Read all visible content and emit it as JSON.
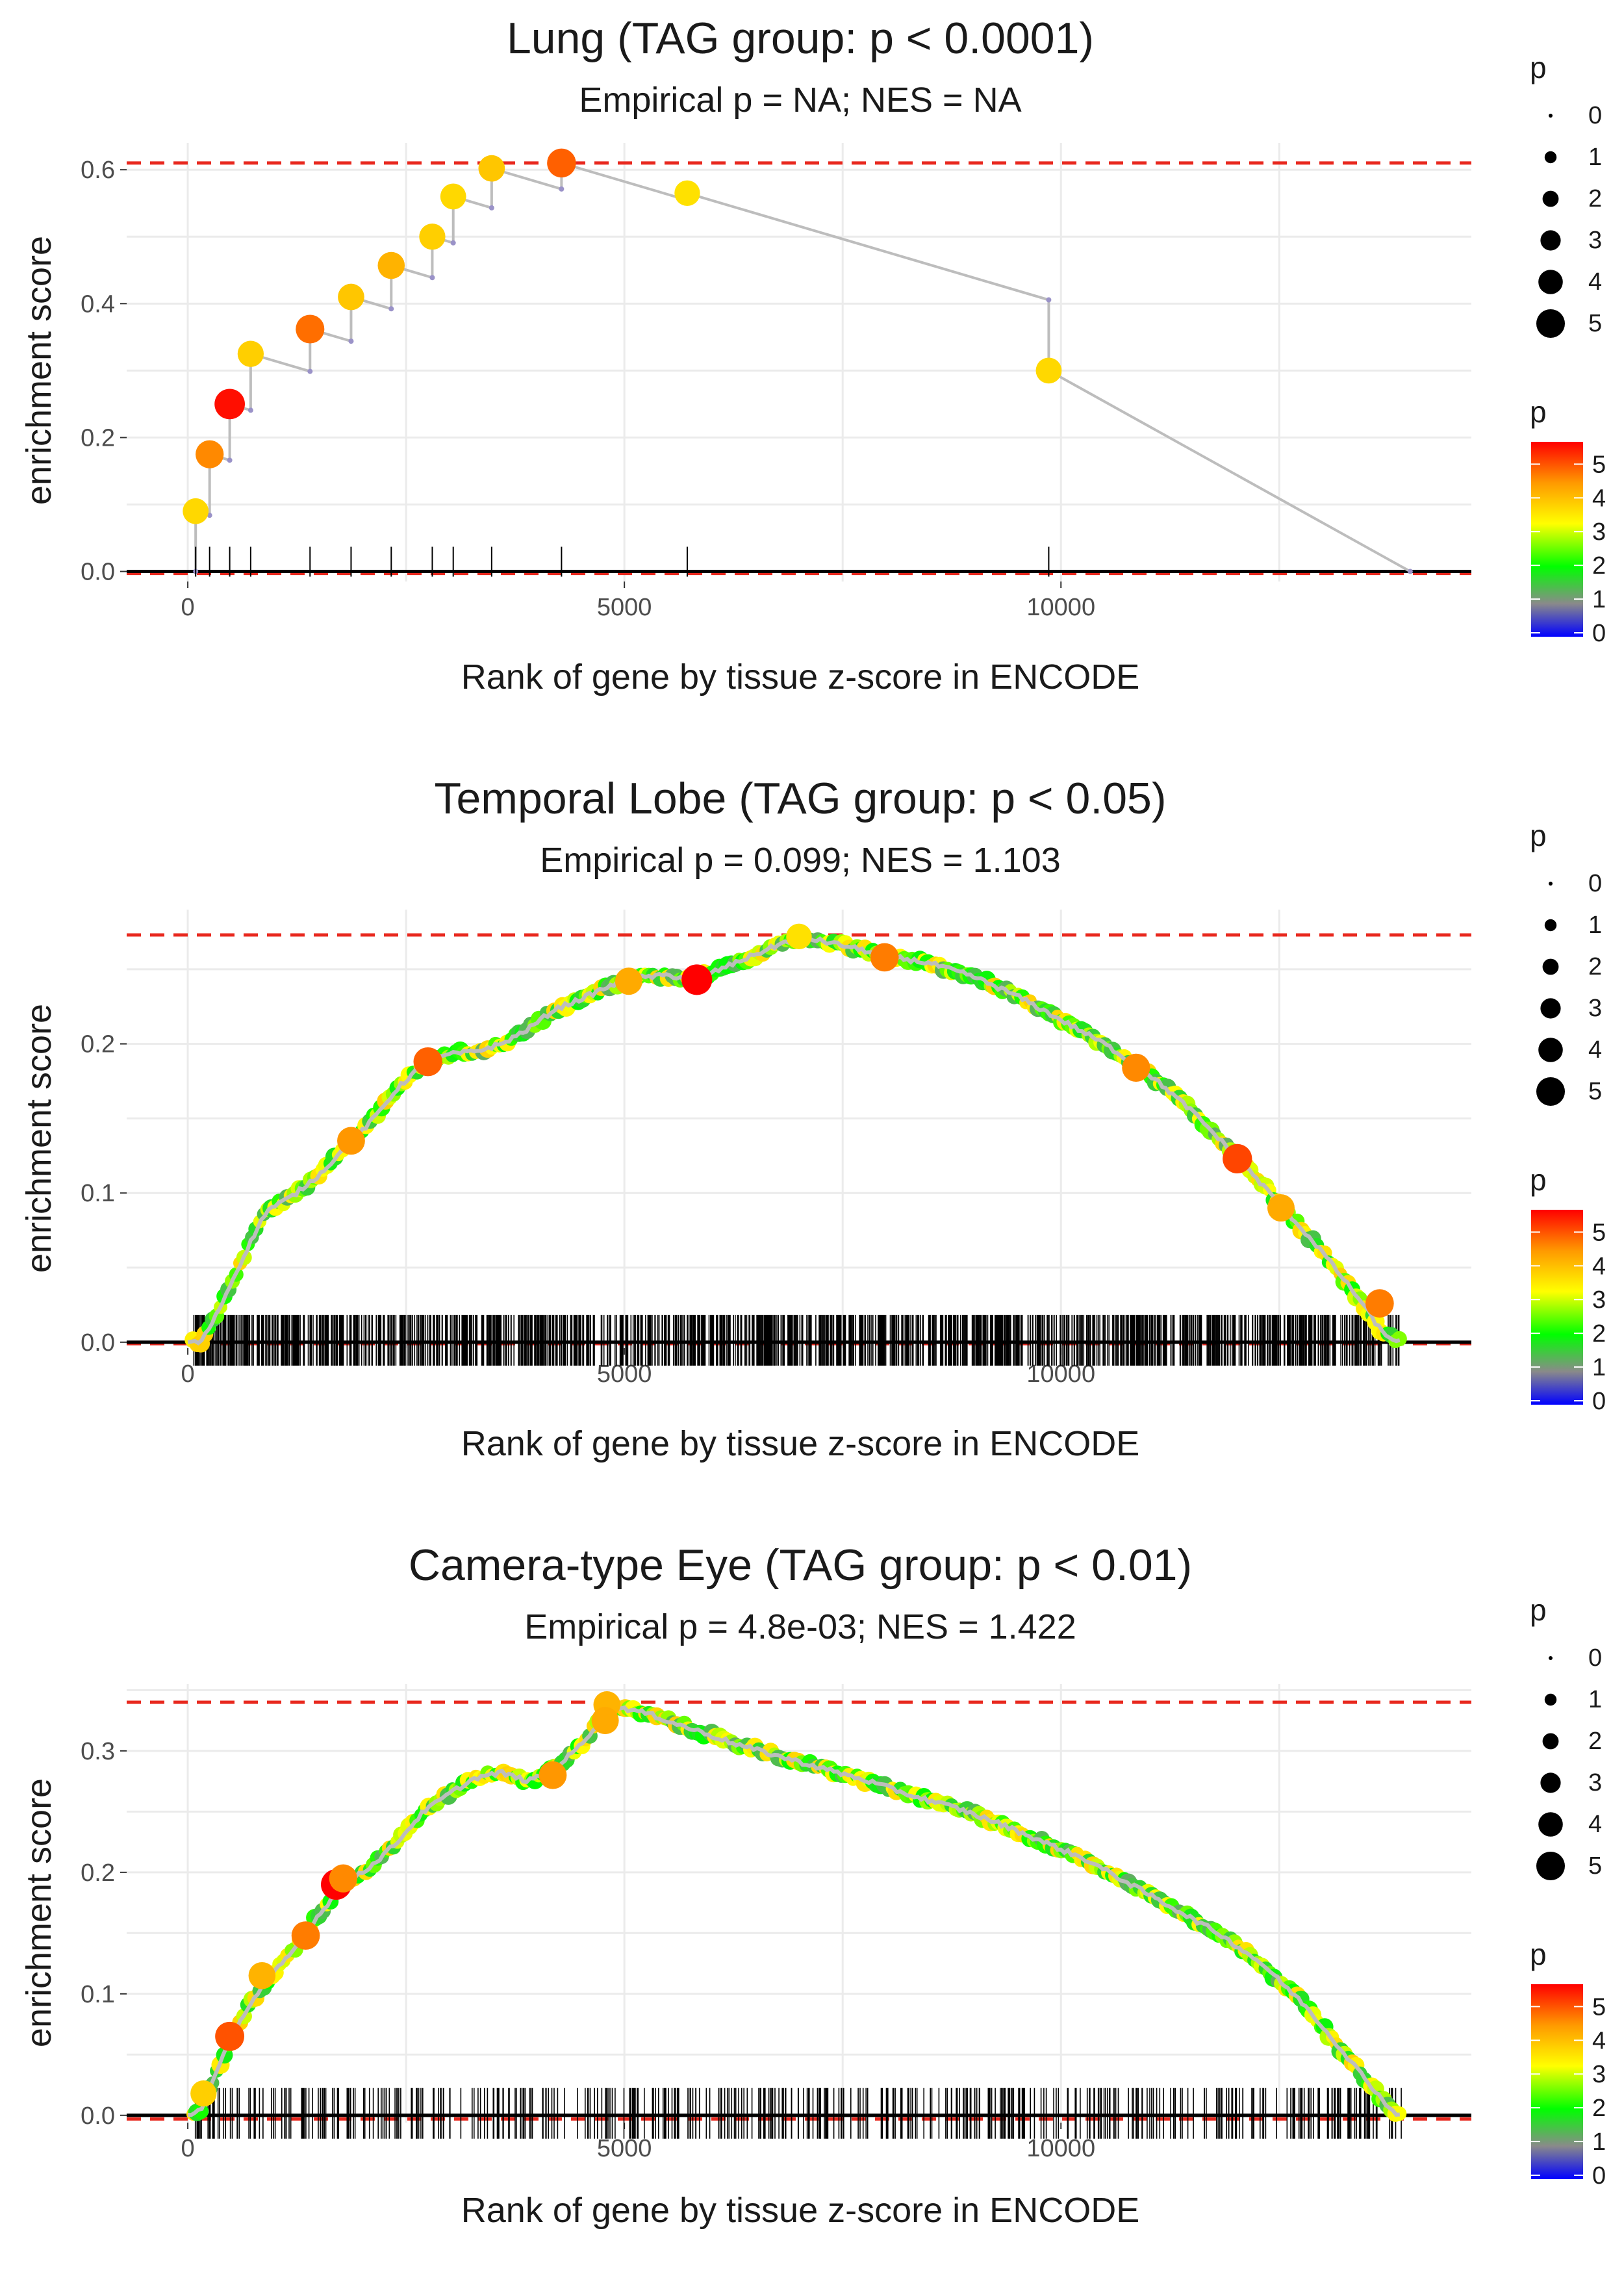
{
  "chart_data": [
    {
      "type": "line",
      "title": "Lung (TAG group: p < 0.0001)",
      "subtitle": "Empirical p = NA; NES = NA",
      "xlabel": "Rank of gene by tissue z-score in ENCODE",
      "ylabel": "enrichment score",
      "xlim": [
        -700,
        14700
      ],
      "ylim": [
        -0.015,
        0.64
      ],
      "xticks": [
        0,
        5000,
        10000
      ],
      "xtick_labels": [
        "0",
        "5000",
        "10000"
      ],
      "yticks": [
        0.0,
        0.2,
        0.4,
        0.6
      ],
      "ytick_labels": [
        "0.0",
        "0.2",
        "0.4",
        "0.6"
      ],
      "max_es": 0.61,
      "min_es": -0.003,
      "n_genes": 14000,
      "hits": [
        {
          "x": 90,
          "y": 0.09,
          "p": 3.5
        },
        {
          "x": 250,
          "y": 0.175,
          "p": 4.3
        },
        {
          "x": 480,
          "y": 0.25,
          "p": 5.2
        },
        {
          "x": 720,
          "y": 0.325,
          "p": 3.6
        },
        {
          "x": 1400,
          "y": 0.362,
          "p": 4.5
        },
        {
          "x": 1870,
          "y": 0.41,
          "p": 3.7
        },
        {
          "x": 2330,
          "y": 0.457,
          "p": 3.9
        },
        {
          "x": 2800,
          "y": 0.5,
          "p": 3.6
        },
        {
          "x": 3040,
          "y": 0.56,
          "p": 3.5
        },
        {
          "x": 3480,
          "y": 0.602,
          "p": 3.7
        },
        {
          "x": 4280,
          "y": 0.61,
          "p": 4.6
        },
        {
          "x": 5720,
          "y": 0.565,
          "p": 3.4
        },
        {
          "x": 9860,
          "y": 0.3,
          "p": 3.5
        }
      ],
      "size_legend": {
        "title": "p",
        "labels": [
          "0",
          "1",
          "2",
          "3",
          "4",
          "5"
        ]
      },
      "color_legend": {
        "title": "p",
        "labels": [
          "0",
          "1",
          "2",
          "3",
          "4",
          "5"
        ]
      }
    },
    {
      "type": "line",
      "title": "Temporal Lobe (TAG group: p < 0.05)",
      "subtitle": "Empirical p = 0.099; NES = 1.103",
      "xlabel": "Rank of gene by tissue z-score in ENCODE",
      "ylabel": "enrichment score",
      "xlim": [
        -700,
        14700
      ],
      "ylim": [
        -0.004,
        0.29
      ],
      "xticks": [
        0,
        5000,
        10000
      ],
      "xtick_labels": [
        "0",
        "5000",
        "10000"
      ],
      "yticks": [
        0.0,
        0.1,
        0.2
      ],
      "ytick_labels": [
        "0.0",
        "0.1",
        "0.2"
      ],
      "max_es": 0.273,
      "min_es": -0.001,
      "n_genes": 14000,
      "curve": [
        [
          0,
          0
        ],
        [
          150,
          0
        ],
        [
          300,
          0.015
        ],
        [
          500,
          0.04
        ],
        [
          700,
          0.065
        ],
        [
          900,
          0.088
        ],
        [
          1200,
          0.098
        ],
        [
          1500,
          0.112
        ],
        [
          1800,
          0.13
        ],
        [
          2100,
          0.148
        ],
        [
          2400,
          0.17
        ],
        [
          2700,
          0.187
        ],
        [
          3000,
          0.193
        ],
        [
          3300,
          0.195
        ],
        [
          3600,
          0.2
        ],
        [
          3900,
          0.21
        ],
        [
          4200,
          0.223
        ],
        [
          4500,
          0.23
        ],
        [
          4800,
          0.238
        ],
        [
          5100,
          0.244
        ],
        [
          5500,
          0.246
        ],
        [
          5800,
          0.243
        ],
        [
          6100,
          0.25
        ],
        [
          6500,
          0.26
        ],
        [
          7000,
          0.272
        ],
        [
          7500,
          0.266
        ],
        [
          8000,
          0.259
        ],
        [
          8500,
          0.254
        ],
        [
          9000,
          0.245
        ],
        [
          9500,
          0.232
        ],
        [
          10000,
          0.216
        ],
        [
          10500,
          0.2
        ],
        [
          11000,
          0.18
        ],
        [
          11500,
          0.155
        ],
        [
          12000,
          0.125
        ],
        [
          12500,
          0.093
        ],
        [
          13000,
          0.06
        ],
        [
          13400,
          0.03
        ],
        [
          13700,
          0.005
        ],
        [
          13900,
          0
        ]
      ],
      "big_hits": [
        {
          "x": 2750,
          "y": 0.188,
          "p": 4.6
        },
        {
          "x": 1870,
          "y": 0.135,
          "p": 4.2
        },
        {
          "x": 5830,
          "y": 0.243,
          "p": 5.3
        },
        {
          "x": 5050,
          "y": 0.242,
          "p": 4.0
        },
        {
          "x": 7980,
          "y": 0.258,
          "p": 4.4
        },
        {
          "x": 10860,
          "y": 0.184,
          "p": 4.3
        },
        {
          "x": 12020,
          "y": 0.123,
          "p": 4.8
        },
        {
          "x": 12520,
          "y": 0.09,
          "p": 4.0
        },
        {
          "x": 13650,
          "y": 0.026,
          "p": 4.4
        },
        {
          "x": 7000,
          "y": 0.272,
          "p": 3.4
        }
      ],
      "rug": {
        "start": 60,
        "end": 13900,
        "count": 1300
      },
      "size_legend": {
        "title": "p",
        "labels": [
          "0",
          "1",
          "2",
          "3",
          "4",
          "5"
        ]
      },
      "color_legend": {
        "title": "p",
        "labels": [
          "0",
          "1",
          "2",
          "3",
          "4",
          "5"
        ]
      }
    },
    {
      "type": "line",
      "title": "Camera-type Eye (TAG group: p < 0.01)",
      "subtitle": "Empirical p = 4.8e-03; NES = 1.422",
      "xlabel": "Rank of gene by tissue z-score in ENCODE",
      "ylabel": "enrichment score",
      "xlim": [
        -700,
        14700
      ],
      "ylim": [
        -0.006,
        0.355
      ],
      "xticks": [
        0,
        5000,
        10000
      ],
      "xtick_labels": [
        "0",
        "5000",
        "10000"
      ],
      "yticks": [
        0.0,
        0.1,
        0.2,
        0.3
      ],
      "ytick_labels": [
        "0.0",
        "0.1",
        "0.2",
        "0.3"
      ],
      "max_es": 0.34,
      "min_es": -0.003,
      "n_genes": 14000,
      "curve": [
        [
          0,
          0
        ],
        [
          150,
          0.005
        ],
        [
          300,
          0.03
        ],
        [
          500,
          0.065
        ],
        [
          700,
          0.09
        ],
        [
          900,
          0.11
        ],
        [
          1200,
          0.135
        ],
        [
          1500,
          0.165
        ],
        [
          1800,
          0.192
        ],
        [
          2100,
          0.205
        ],
        [
          2400,
          0.225
        ],
        [
          2700,
          0.25
        ],
        [
          3000,
          0.265
        ],
        [
          3300,
          0.278
        ],
        [
          3600,
          0.282
        ],
        [
          3900,
          0.275
        ],
        [
          4200,
          0.285
        ],
        [
          4500,
          0.305
        ],
        [
          4700,
          0.323
        ],
        [
          4800,
          0.338
        ],
        [
          5000,
          0.335
        ],
        [
          5300,
          0.33
        ],
        [
          5600,
          0.322
        ],
        [
          5900,
          0.315
        ],
        [
          6300,
          0.305
        ],
        [
          6800,
          0.295
        ],
        [
          7300,
          0.285
        ],
        [
          7800,
          0.275
        ],
        [
          8300,
          0.263
        ],
        [
          8800,
          0.253
        ],
        [
          9300,
          0.24
        ],
        [
          9800,
          0.225
        ],
        [
          10300,
          0.21
        ],
        [
          10800,
          0.19
        ],
        [
          11300,
          0.17
        ],
        [
          11800,
          0.15
        ],
        [
          12300,
          0.125
        ],
        [
          12800,
          0.09
        ],
        [
          13200,
          0.055
        ],
        [
          13600,
          0.02
        ],
        [
          13800,
          0.003
        ],
        [
          13900,
          0
        ]
      ],
      "big_hits": [
        {
          "x": 480,
          "y": 0.065,
          "p": 4.7
        },
        {
          "x": 1350,
          "y": 0.148,
          "p": 4.4
        },
        {
          "x": 1700,
          "y": 0.19,
          "p": 5.3
        },
        {
          "x": 1780,
          "y": 0.195,
          "p": 4.3
        },
        {
          "x": 4180,
          "y": 0.28,
          "p": 4.2
        },
        {
          "x": 4800,
          "y": 0.338,
          "p": 3.9
        },
        {
          "x": 4780,
          "y": 0.325,
          "p": 4.0
        },
        {
          "x": 850,
          "y": 0.115,
          "p": 3.9
        },
        {
          "x": 180,
          "y": 0.018,
          "p": 3.6
        }
      ],
      "rug": {
        "start": 60,
        "end": 13900,
        "count": 480
      },
      "size_legend": {
        "title": "p",
        "labels": [
          "0",
          "1",
          "2",
          "3",
          "4",
          "5"
        ]
      },
      "color_legend": {
        "title": "p",
        "labels": [
          "0",
          "1",
          "2",
          "3",
          "4",
          "5"
        ]
      }
    }
  ],
  "colors": {
    "threshold": "#e8281e",
    "curve": "#bdbdbd",
    "grid": "#ebebeb",
    "zero_line": "#000000",
    "rug": "#000000",
    "gradient": [
      "#0000ff",
      "#8a8a8a",
      "#00ff00",
      "#ffff00",
      "#ff9900",
      "#ff0000"
    ]
  }
}
